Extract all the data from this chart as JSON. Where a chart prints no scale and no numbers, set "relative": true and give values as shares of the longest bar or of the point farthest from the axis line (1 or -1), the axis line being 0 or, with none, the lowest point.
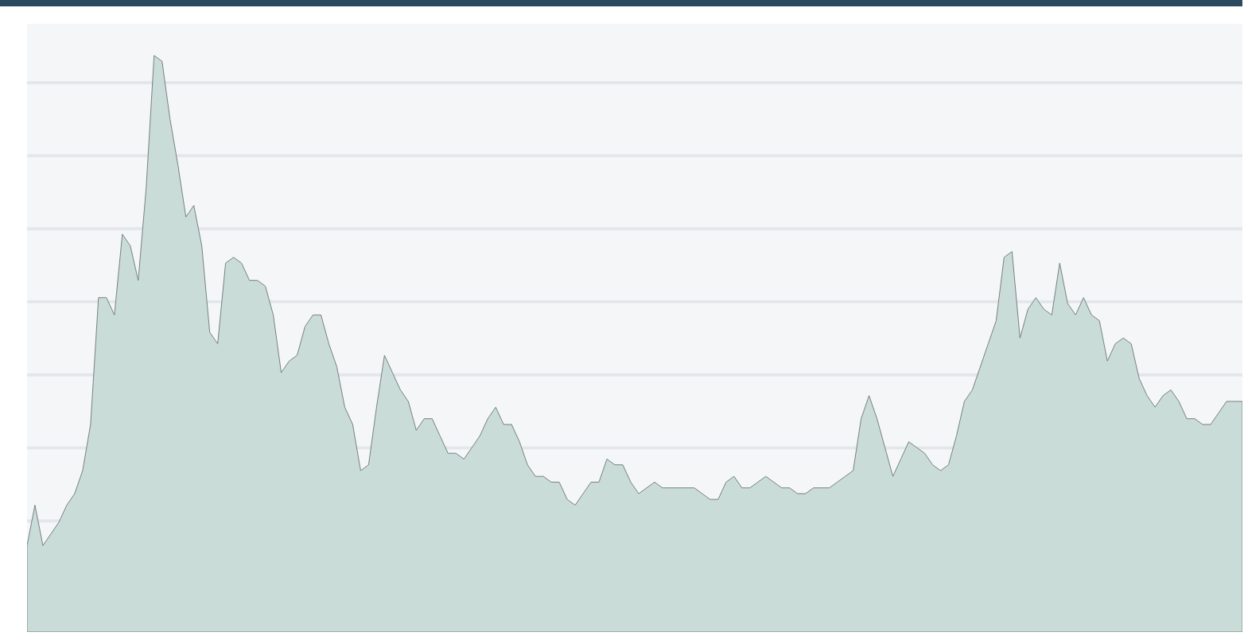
{
  "chart_data": {
    "type": "area",
    "relative": true,
    "grid": true,
    "color": "#c9dcd8",
    "categories": [
      null,
      null,
      null,
      null,
      null,
      null,
      null,
      null,
      null,
      null,
      null,
      null,
      null,
      null,
      null,
      null,
      null,
      null,
      null,
      null,
      null,
      null,
      null,
      null,
      null,
      null,
      null,
      null,
      null,
      null,
      null,
      null,
      null,
      null,
      null,
      null,
      null,
      null,
      null,
      null,
      null,
      null,
      null,
      null,
      null,
      null,
      null,
      null,
      null,
      null,
      null,
      null,
      null,
      null,
      null,
      null,
      null,
      null,
      null,
      null,
      null,
      null,
      null,
      null,
      null,
      null,
      null,
      null,
      null,
      null,
      null,
      null,
      null,
      null,
      null,
      null,
      null,
      null,
      null,
      null,
      null,
      null,
      null,
      null,
      null,
      null,
      null,
      null,
      null,
      null,
      null,
      null,
      null,
      null,
      null,
      null,
      null,
      null,
      null,
      null,
      null,
      null,
      null,
      null,
      null,
      null,
      null,
      null,
      null,
      null,
      null,
      null,
      null,
      null,
      null,
      null,
      null,
      null,
      null,
      null,
      null,
      null,
      null,
      null,
      null,
      null,
      null,
      null,
      null,
      null,
      null,
      null,
      null,
      null,
      null,
      null,
      null,
      null,
      null,
      null,
      null,
      null,
      null,
      null,
      null,
      null,
      null,
      null,
      null,
      null,
      null,
      null,
      null,
      null
    ],
    "values": [
      0.15,
      0.22,
      0.15,
      0.17,
      0.19,
      0.22,
      0.24,
      0.28,
      0.36,
      0.58,
      0.58,
      0.55,
      0.69,
      0.67,
      0.61,
      0.77,
      1,
      0.99,
      0.89,
      0.81,
      0.72,
      0.74,
      0.67,
      0.52,
      0.5,
      0.64,
      0.65,
      0.64,
      0.61,
      0.61,
      0.6,
      0.55,
      0.45,
      0.47,
      0.48,
      0.53,
      0.55,
      0.55,
      0.5,
      0.46,
      0.39,
      0.36,
      0.28,
      0.29,
      0.39,
      0.48,
      0.45,
      0.42,
      0.4,
      0.35,
      0.37,
      0.37,
      0.34,
      0.31,
      0.31,
      0.3,
      0.32,
      0.34,
      0.37,
      0.39,
      0.36,
      0.36,
      0.33,
      0.29,
      0.27,
      0.27,
      0.26,
      0.26,
      0.23,
      0.22,
      0.24,
      0.26,
      0.26,
      0.3,
      0.29,
      0.29,
      0.26,
      0.24,
      0.25,
      0.26,
      0.25,
      0.25,
      0.25,
      0.25,
      0.25,
      0.24,
      0.23,
      0.23,
      0.26,
      0.27,
      0.25,
      0.25,
      0.26,
      0.27,
      0.26,
      0.25,
      0.25,
      0.24,
      0.24,
      0.25,
      0.25,
      0.25,
      0.26,
      0.27,
      0.28,
      0.37,
      0.41,
      0.37,
      0.32,
      0.27,
      0.3,
      0.33,
      0.32,
      0.31,
      0.29,
      0.28,
      0.29,
      0.34,
      0.4,
      0.42,
      0.46,
      0.5,
      0.54,
      0.65,
      0.66,
      0.51,
      0.56,
      0.58,
      0.56,
      0.55,
      0.64,
      0.57,
      0.55,
      0.58,
      0.55,
      0.54,
      0.47,
      0.5,
      0.51,
      0.5,
      0.44,
      0.41,
      0.39,
      0.41,
      0.42,
      0.4,
      0.37,
      0.37,
      0.36,
      0.36,
      0.38,
      0.4,
      0.4,
      0.4
    ]
  }
}
